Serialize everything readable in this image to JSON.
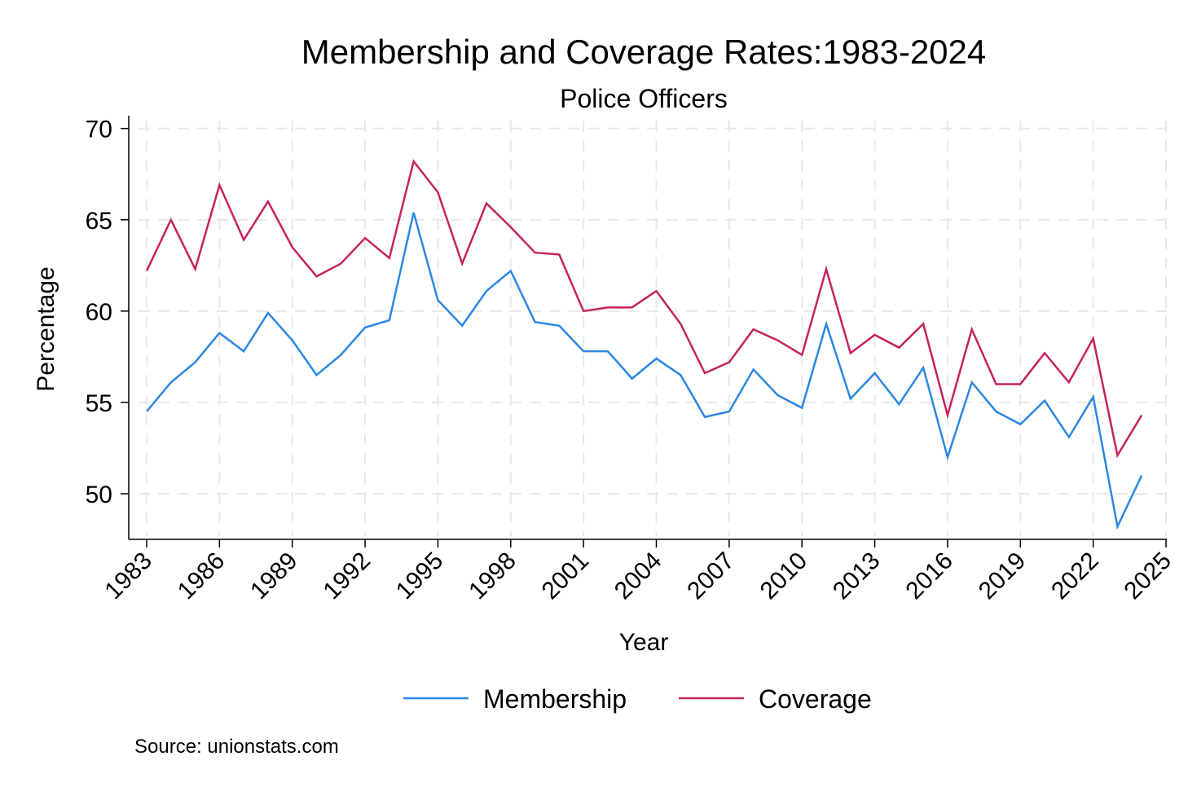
{
  "chart_data": {
    "type": "line",
    "title": "Membership and Coverage Rates:1983-2024",
    "subtitle": "Police Officers",
    "xlabel": "Year",
    "ylabel": "Percentage",
    "source": "Source: unionstats.com",
    "xlim": [
      1983,
      2025
    ],
    "ylim": [
      47.5,
      70.7
    ],
    "x_ticks": [
      1983,
      1986,
      1989,
      1992,
      1995,
      1998,
      2001,
      2004,
      2007,
      2010,
      2013,
      2016,
      2019,
      2022,
      2025
    ],
    "y_ticks": [
      50,
      55,
      60,
      65,
      70
    ],
    "grid": true,
    "legend_position": "bottom",
    "x": [
      1983,
      1984,
      1985,
      1986,
      1987,
      1988,
      1989,
      1990,
      1991,
      1992,
      1993,
      1994,
      1995,
      1996,
      1997,
      1998,
      1999,
      2000,
      2001,
      2002,
      2003,
      2004,
      2005,
      2006,
      2007,
      2008,
      2009,
      2010,
      2011,
      2012,
      2013,
      2014,
      2015,
      2016,
      2017,
      2018,
      2019,
      2020,
      2021,
      2022,
      2023,
      2024
    ],
    "series": [
      {
        "name": "Membership",
        "color": "#2b87e3",
        "values": [
          54.5,
          56.1,
          57.2,
          58.8,
          57.8,
          59.9,
          58.4,
          56.5,
          57.6,
          59.1,
          59.5,
          65.4,
          60.6,
          59.2,
          61.1,
          62.2,
          59.4,
          59.2,
          57.8,
          57.8,
          56.3,
          57.4,
          56.5,
          54.2,
          54.5,
          56.8,
          55.4,
          54.7,
          59.3,
          55.2,
          56.6,
          54.9,
          56.9,
          52.0,
          56.1,
          54.5,
          53.8,
          55.1,
          53.1,
          55.3,
          48.2,
          51.0
        ]
      },
      {
        "name": "Coverage",
        "color": "#c5225f",
        "values": [
          62.2,
          65.0,
          62.3,
          66.9,
          63.9,
          66.0,
          63.5,
          61.9,
          62.6,
          64.0,
          62.9,
          68.2,
          66.5,
          62.6,
          65.9,
          64.6,
          63.2,
          63.1,
          60.0,
          60.2,
          60.2,
          61.1,
          59.3,
          56.6,
          57.2,
          59.0,
          58.4,
          57.6,
          62.3,
          57.7,
          58.7,
          58.0,
          59.3,
          54.3,
          59.0,
          56.0,
          56.0,
          57.7,
          56.1,
          58.5,
          52.1,
          54.3
        ]
      }
    ]
  }
}
